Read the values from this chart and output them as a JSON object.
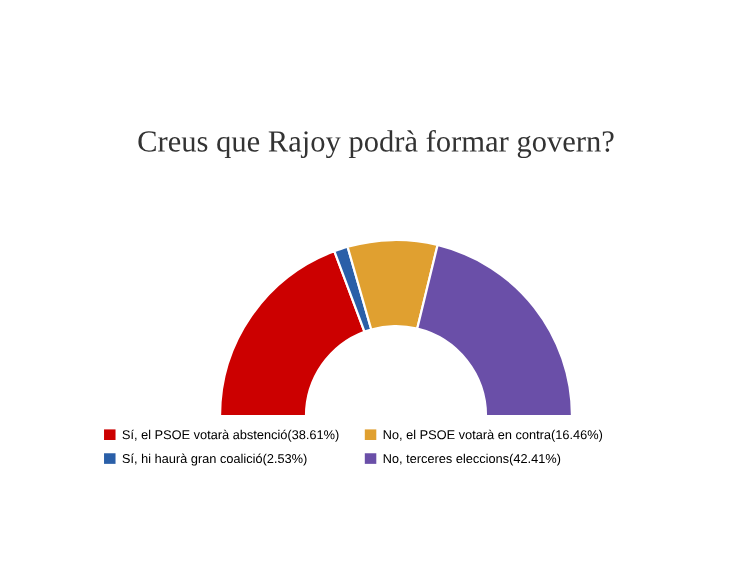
{
  "chart_data": {
    "type": "donut",
    "title": "Creus que Rajoy podrà formar govern?",
    "categories": [
      "Sí, el PSOE votarà abstenció(38.61%)",
      "Sí, hi haurà gran coalició(2.53%)",
      "No, el PSOE votarà en contra(16.46%)",
      "No, terceres eleccions(42.41%)"
    ],
    "values": [
      38.61,
      2.53,
      16.46,
      42.41
    ],
    "colors": [
      "#cc0000",
      "#2a5fa8",
      "#e0a030",
      "#6a4fa8"
    ],
    "legend": "bottom"
  }
}
